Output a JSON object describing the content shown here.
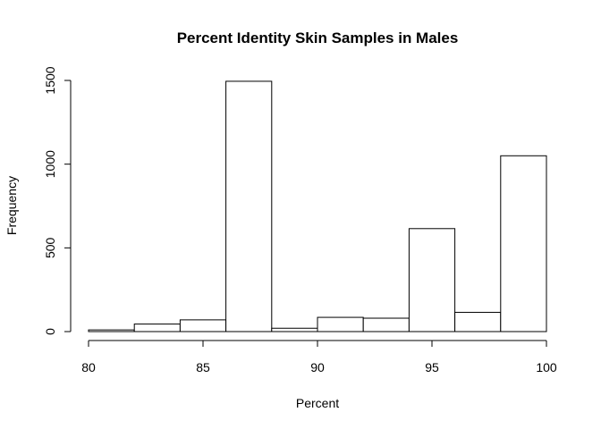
{
  "chart_data": {
    "type": "bar",
    "title": "Percent Identity Skin Samples in Males",
    "xlabel": "Percent",
    "ylabel": "Frequency",
    "bins": [
      {
        "start": 80,
        "end": 82,
        "count": 10
      },
      {
        "start": 82,
        "end": 84,
        "count": 45
      },
      {
        "start": 84,
        "end": 86,
        "count": 70
      },
      {
        "start": 86,
        "end": 88,
        "count": 1495
      },
      {
        "start": 88,
        "end": 90,
        "count": 20
      },
      {
        "start": 90,
        "end": 92,
        "count": 85
      },
      {
        "start": 92,
        "end": 94,
        "count": 80
      },
      {
        "start": 94,
        "end": 96,
        "count": 615
      },
      {
        "start": 96,
        "end": 98,
        "count": 115
      },
      {
        "start": 98,
        "end": 100,
        "count": 1050
      }
    ],
    "xlim": [
      80,
      100
    ],
    "ylim": [
      0,
      1500
    ],
    "xticks": [
      "80",
      "85",
      "90",
      "95",
      "100"
    ],
    "yticks": [
      "0",
      "500",
      "1000",
      "1500"
    ],
    "grid": false,
    "bar_fill": "#ffffff",
    "bar_stroke": "#000000"
  }
}
